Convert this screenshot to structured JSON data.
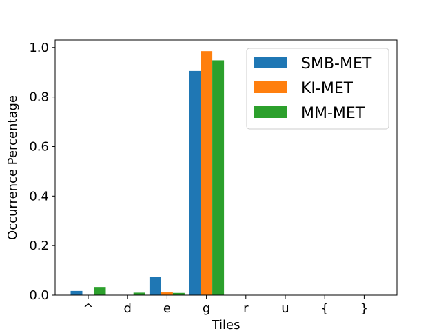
{
  "chart_data": {
    "type": "bar",
    "title": "",
    "xlabel": "Tiles",
    "ylabel": "Occurrence Percentage",
    "categories": [
      "^",
      "d",
      "e",
      "g",
      "r",
      "u",
      "{",
      "}"
    ],
    "ylim": [
      0,
      1.03
    ],
    "yticks": [
      "0.0",
      "0.2",
      "0.4",
      "0.6",
      "0.8",
      "1.0"
    ],
    "grid": false,
    "legend_position": "top-right",
    "series": [
      {
        "name": "SMB-MET",
        "color": "#1f77b4",
        "values": [
          0.017,
          0.0,
          0.075,
          0.905,
          0.0,
          0.0,
          0.0,
          0.0
        ]
      },
      {
        "name": "KI-MET",
        "color": "#ff7f0e",
        "values": [
          0.0,
          0.0,
          0.011,
          0.985,
          0.0,
          0.0,
          0.0,
          0.0
        ]
      },
      {
        "name": "MM-MET",
        "color": "#2ca02c",
        "values": [
          0.033,
          0.01,
          0.009,
          0.948,
          0.0,
          0.0,
          0.0,
          0.0
        ]
      }
    ]
  }
}
